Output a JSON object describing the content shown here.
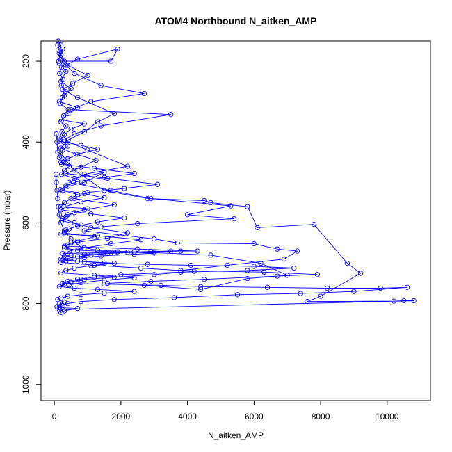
{
  "chart_data": {
    "type": "scatter",
    "title": "ATOM4 Northbound N_aitken_AMP",
    "xlabel": "N_aitken_AMP",
    "ylabel": "Pressure (mbar)",
    "xlim": [
      -400,
      11300
    ],
    "ylim": [
      1040,
      150
    ],
    "y_reversed": true,
    "x_ticks": [
      0,
      2000,
      4000,
      6000,
      8000,
      10000
    ],
    "y_ticks": [
      200,
      400,
      600,
      800,
      1000
    ],
    "x_tick_labels": [
      "0",
      "2000",
      "4000",
      "6000",
      "8000",
      "10000"
    ],
    "y_tick_labels": [
      "200",
      "400",
      "600",
      "800",
      "1000"
    ],
    "marker": "open-circle",
    "connected": true,
    "color": "#0000ff",
    "grid": false,
    "series": [
      {
        "points": [
          [
            120,
            150
          ],
          [
            200,
            160
          ],
          [
            150,
            180
          ],
          [
            250,
            170
          ],
          [
            180,
            190
          ],
          [
            300,
            200
          ],
          [
            220,
            215
          ],
          [
            160,
            230
          ],
          [
            260,
            245
          ],
          [
            210,
            260
          ],
          [
            330,
            275
          ],
          [
            240,
            290
          ],
          [
            180,
            305
          ],
          [
            420,
            320
          ],
          [
            280,
            335
          ],
          [
            200,
            350
          ],
          [
            350,
            360
          ],
          [
            230,
            375
          ],
          [
            150,
            390
          ],
          [
            280,
            400
          ],
          [
            400,
            410
          ],
          [
            250,
            420
          ],
          [
            180,
            430
          ],
          [
            320,
            440
          ],
          [
            200,
            450
          ],
          [
            450,
            460
          ],
          [
            300,
            470
          ],
          [
            220,
            480
          ],
          [
            600,
            490
          ],
          [
            1500,
            475
          ],
          [
            900,
            500
          ],
          [
            400,
            510
          ],
          [
            250,
            520
          ],
          [
            700,
            530
          ],
          [
            500,
            540
          ],
          [
            300,
            550
          ],
          [
            200,
            560
          ],
          [
            1000,
            565
          ],
          [
            600,
            575
          ],
          [
            350,
            585
          ],
          [
            220,
            595
          ],
          [
            800,
            605
          ],
          [
            450,
            615
          ],
          [
            300,
            625
          ],
          [
            1200,
            635
          ],
          [
            700,
            645
          ],
          [
            500,
            650
          ],
          [
            300,
            658
          ],
          [
            2500,
            665
          ],
          [
            4300,
            670
          ],
          [
            3800,
            670
          ],
          [
            3000,
            672
          ],
          [
            1800,
            675
          ],
          [
            900,
            678
          ],
          [
            500,
            680
          ],
          [
            300,
            682
          ],
          [
            200,
            690
          ],
          [
            700,
            695
          ],
          [
            1500,
            700
          ],
          [
            2800,
            703
          ],
          [
            4100,
            705
          ],
          [
            6000,
            708
          ],
          [
            7200,
            712
          ],
          [
            5800,
            718
          ],
          [
            3800,
            722
          ],
          [
            2000,
            728
          ],
          [
            1200,
            735
          ],
          [
            700,
            740
          ],
          [
            400,
            745
          ],
          [
            250,
            750
          ],
          [
            1500,
            752
          ],
          [
            3200,
            755
          ],
          [
            4400,
            758
          ],
          [
            6400,
            760
          ],
          [
            8200,
            762
          ],
          [
            9800,
            762
          ],
          [
            10600,
            760
          ],
          [
            9000,
            770
          ],
          [
            7400,
            775
          ],
          [
            5500,
            778
          ],
          [
            3600,
            785
          ],
          [
            1800,
            790
          ],
          [
            800,
            795
          ],
          [
            400,
            800
          ],
          [
            250,
            805
          ],
          [
            150,
            810
          ],
          [
            700,
            812
          ],
          [
            300,
            818
          ],
          [
            200,
            822
          ],
          [
            150,
            815
          ],
          [
            10800,
            793
          ],
          [
            10500,
            793
          ],
          [
            10200,
            794
          ],
          [
            7600,
            795
          ],
          [
            8000,
            782
          ],
          [
            9200,
            725
          ],
          [
            8800,
            700
          ],
          [
            7800,
            604
          ],
          [
            6100,
            612
          ],
          [
            5800,
            560
          ],
          [
            4700,
            550
          ],
          [
            4500,
            545
          ],
          [
            2800,
            540
          ],
          [
            1500,
            520
          ],
          [
            600,
            470
          ],
          [
            400,
            450
          ],
          [
            150,
            438
          ],
          [
            100,
            425
          ],
          [
            80,
            400
          ],
          [
            60,
            380
          ]
        ]
      },
      {
        "points": [
          [
            100,
            160
          ],
          [
            180,
            175
          ],
          [
            130,
            200
          ],
          [
            1700,
            200
          ],
          [
            1900,
            170
          ],
          [
            700,
            195
          ],
          [
            350,
            210
          ],
          [
            600,
            230
          ],
          [
            1400,
            260
          ],
          [
            2700,
            280
          ],
          [
            1100,
            300
          ],
          [
            500,
            320
          ],
          [
            3500,
            332
          ],
          [
            1400,
            360
          ],
          [
            600,
            380
          ],
          [
            300,
            395
          ],
          [
            1000,
            420
          ],
          [
            2200,
            460
          ],
          [
            900,
            480
          ],
          [
            450,
            500
          ],
          [
            1700,
            520
          ],
          [
            2900,
            540
          ],
          [
            5300,
            558
          ],
          [
            4000,
            580
          ],
          [
            5400,
            590
          ],
          [
            2500,
            602
          ],
          [
            1400,
            610
          ],
          [
            900,
            620
          ],
          [
            3000,
            640
          ],
          [
            3700,
            650
          ],
          [
            6000,
            652
          ],
          [
            6700,
            665
          ],
          [
            7300,
            670
          ],
          [
            6900,
            690
          ],
          [
            5200,
            705
          ],
          [
            3800,
            718
          ],
          [
            6300,
            722
          ],
          [
            7900,
            728
          ],
          [
            6700,
            732
          ],
          [
            4500,
            740
          ],
          [
            2900,
            745
          ],
          [
            1600,
            750
          ],
          [
            2700,
            755
          ],
          [
            4400,
            765
          ],
          [
            5800,
            738
          ],
          [
            7000,
            730
          ],
          [
            6200,
            700
          ],
          [
            4700,
            680
          ],
          [
            2400,
            672
          ],
          [
            1300,
            668
          ],
          [
            800,
            660
          ],
          [
            500,
            640
          ],
          [
            300,
            620
          ],
          [
            200,
            600
          ],
          [
            150,
            580
          ],
          [
            120,
            560
          ],
          [
            100,
            540
          ],
          [
            80,
            520
          ],
          [
            60,
            500
          ],
          [
            50,
            480
          ]
        ]
      },
      {
        "points": [
          [
            200,
            185
          ],
          [
            400,
            210
          ],
          [
            1000,
            235
          ],
          [
            550,
            255
          ],
          [
            250,
            270
          ],
          [
            700,
            290
          ],
          [
            1800,
            330
          ],
          [
            1300,
            350
          ],
          [
            900,
            375
          ],
          [
            420,
            395
          ],
          [
            200,
            415
          ],
          [
            650,
            430
          ],
          [
            1250,
            445
          ],
          [
            800,
            462
          ],
          [
            350,
            478
          ],
          [
            1600,
            490
          ],
          [
            3100,
            505
          ],
          [
            2100,
            515
          ],
          [
            1000,
            525
          ],
          [
            600,
            540
          ],
          [
            1800,
            555
          ],
          [
            900,
            568
          ],
          [
            400,
            580
          ],
          [
            250,
            590
          ],
          [
            600,
            600
          ],
          [
            1100,
            612
          ],
          [
            2200,
            625
          ],
          [
            1600,
            638
          ],
          [
            700,
            648
          ],
          [
            400,
            655
          ],
          [
            300,
            662
          ],
          [
            700,
            668
          ],
          [
            1900,
            672
          ],
          [
            3000,
            675
          ],
          [
            2400,
            678
          ],
          [
            1400,
            682
          ],
          [
            900,
            686
          ],
          [
            600,
            690
          ],
          [
            350,
            694
          ],
          [
            200,
            698
          ],
          [
            1200,
            705
          ],
          [
            2600,
            712
          ],
          [
            4200,
            720
          ],
          [
            3000,
            728
          ],
          [
            1800,
            735
          ],
          [
            900,
            740
          ],
          [
            500,
            746
          ],
          [
            300,
            752
          ],
          [
            150,
            758
          ],
          [
            600,
            762
          ],
          [
            1300,
            765
          ],
          [
            2400,
            770
          ],
          [
            1500,
            774
          ],
          [
            800,
            778
          ],
          [
            400,
            782
          ],
          [
            200,
            786
          ],
          [
            100,
            790
          ],
          [
            300,
            796
          ],
          [
            150,
            802
          ],
          [
            80,
            808
          ]
        ]
      },
      {
        "points": [
          [
            150,
            205
          ],
          [
            350,
            225
          ],
          [
            200,
            250
          ],
          [
            500,
            268
          ],
          [
            300,
            285
          ],
          [
            150,
            300
          ],
          [
            700,
            315
          ],
          [
            400,
            330
          ],
          [
            220,
            345
          ],
          [
            900,
            355
          ],
          [
            500,
            368
          ],
          [
            300,
            382
          ],
          [
            150,
            398
          ],
          [
            800,
            408
          ],
          [
            1300,
            418
          ],
          [
            700,
            430
          ],
          [
            400,
            442
          ],
          [
            220,
            455
          ],
          [
            1200,
            465
          ],
          [
            2400,
            478
          ],
          [
            1500,
            488
          ],
          [
            700,
            498
          ],
          [
            350,
            508
          ],
          [
            180,
            518
          ],
          [
            900,
            528
          ],
          [
            1500,
            538
          ],
          [
            800,
            548
          ],
          [
            400,
            558
          ],
          [
            200,
            568
          ],
          [
            1100,
            578
          ],
          [
            2100,
            588
          ],
          [
            1300,
            598
          ],
          [
            700,
            608
          ],
          [
            350,
            618
          ],
          [
            200,
            628
          ],
          [
            1300,
            632
          ],
          [
            2600,
            642
          ],
          [
            1700,
            652
          ],
          [
            900,
            662
          ],
          [
            450,
            670
          ],
          [
            250,
            676
          ],
          [
            3500,
            670
          ],
          [
            2900,
            671
          ],
          [
            2200,
            673
          ],
          [
            1600,
            676
          ],
          [
            1100,
            680
          ],
          [
            700,
            684
          ],
          [
            400,
            688
          ],
          [
            250,
            692
          ],
          [
            900,
            696
          ],
          [
            1800,
            700
          ],
          [
            1100,
            706
          ],
          [
            600,
            712
          ],
          [
            350,
            718
          ],
          [
            200,
            724
          ],
          [
            1200,
            730
          ],
          [
            2400,
            736
          ],
          [
            1500,
            742
          ],
          [
            800,
            748
          ],
          [
            450,
            754
          ]
        ]
      }
    ]
  }
}
